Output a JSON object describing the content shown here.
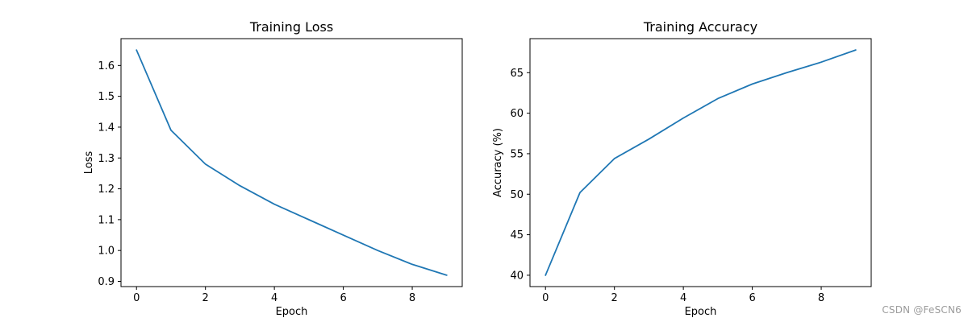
{
  "figure": {
    "background": "#ffffff",
    "line_color": "#1f77b4",
    "text_color": "#000000",
    "spine_color": "#000000"
  },
  "watermark": {
    "text": "CSDN @FeSCN6",
    "color": "#9b9b9b"
  },
  "chart_data": [
    {
      "type": "line",
      "title": "Training Loss",
      "xlabel": "Epoch",
      "ylabel": "Loss",
      "x": [
        0,
        1,
        2,
        3,
        4,
        5,
        6,
        7,
        8,
        9
      ],
      "values": [
        1.65,
        1.39,
        1.28,
        1.21,
        1.15,
        1.1,
        1.05,
        1.0,
        0.955,
        0.92
      ],
      "xlim": [
        -0.45,
        9.45
      ],
      "ylim": [
        0.883,
        1.687
      ],
      "xticks": [
        0,
        2,
        4,
        6,
        8
      ],
      "xtick_labels": [
        "0",
        "2",
        "4",
        "6",
        "8"
      ],
      "yticks": [
        0.9,
        1.0,
        1.1,
        1.2,
        1.3,
        1.4,
        1.5,
        1.6
      ],
      "ytick_labels": [
        "0.9",
        "1.0",
        "1.1",
        "1.2",
        "1.3",
        "1.4",
        "1.5",
        "1.6"
      ],
      "grid": false,
      "legend": null
    },
    {
      "type": "line",
      "title": "Training Accuracy",
      "xlabel": "Epoch",
      "ylabel": "Accuracy (%)",
      "x": [
        0,
        1,
        2,
        3,
        4,
        5,
        6,
        7,
        8,
        9
      ],
      "values": [
        40.0,
        50.2,
        54.4,
        56.8,
        59.4,
        61.8,
        63.6,
        65.0,
        66.3,
        67.8
      ],
      "xlim": [
        -0.45,
        9.45
      ],
      "ylim": [
        38.6,
        69.2
      ],
      "xticks": [
        0,
        2,
        4,
        6,
        8
      ],
      "xtick_labels": [
        "0",
        "2",
        "4",
        "6",
        "8"
      ],
      "yticks": [
        40,
        45,
        50,
        55,
        60,
        65
      ],
      "ytick_labels": [
        "40",
        "45",
        "50",
        "55",
        "60",
        "65"
      ],
      "grid": false,
      "legend": null
    }
  ]
}
